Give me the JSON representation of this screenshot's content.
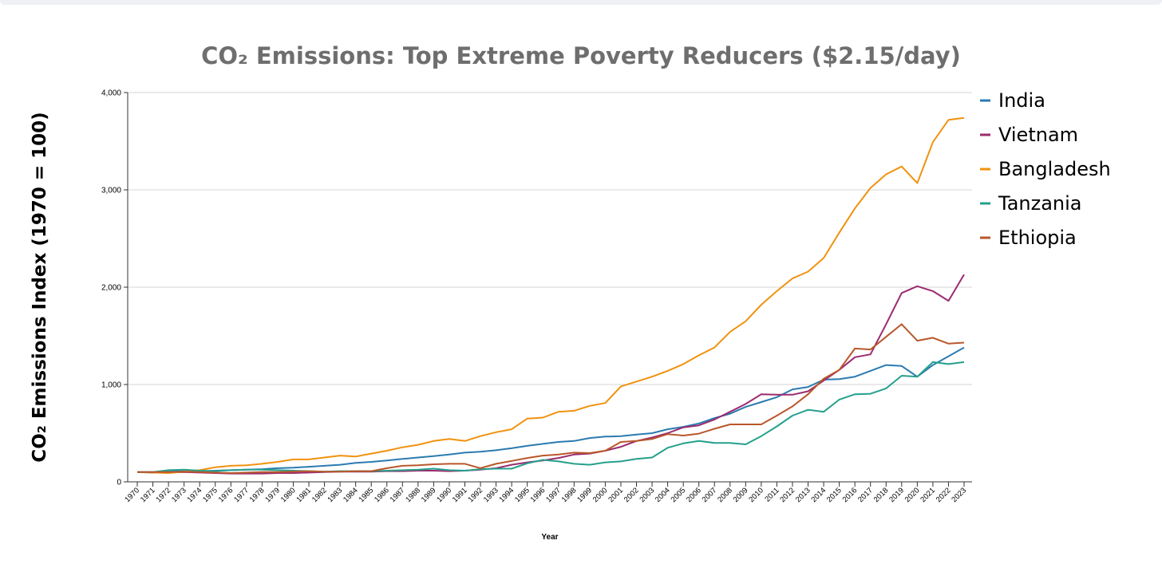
{
  "chart_data": {
    "type": "line",
    "title": "CO₂ Emissions: Top Extreme Poverty Reducers ($2.15/day)",
    "xlabel": "Year",
    "ylabel": "CO₂ Emissions Index (1970 = 100)",
    "ylim": [
      0,
      4000
    ],
    "yticks": [
      0,
      1000,
      2000,
      3000,
      4000
    ],
    "ytick_labels": [
      "0",
      "1,000",
      "2,000",
      "3,000",
      "4,000"
    ],
    "grid": "horizontal",
    "legend_position": "right",
    "x": [
      1970,
      1971,
      1972,
      1973,
      1974,
      1975,
      1976,
      1977,
      1978,
      1979,
      1980,
      1981,
      1982,
      1983,
      1984,
      1985,
      1986,
      1987,
      1988,
      1989,
      1990,
      1991,
      1992,
      1993,
      1994,
      1995,
      1996,
      1997,
      1998,
      1999,
      2000,
      2001,
      2002,
      2003,
      2004,
      2005,
      2006,
      2007,
      2008,
      2009,
      2010,
      2011,
      2012,
      2013,
      2014,
      2015,
      2016,
      2017,
      2018,
      2019,
      2020,
      2021,
      2022,
      2023
    ],
    "series": [
      {
        "name": "India",
        "color": "#2b7bb0",
        "values": [
          100,
          100,
          105,
          108,
          110,
          115,
          120,
          125,
          130,
          140,
          145,
          155,
          165,
          175,
          195,
          205,
          220,
          235,
          250,
          265,
          280,
          300,
          310,
          325,
          345,
          370,
          390,
          410,
          420,
          450,
          465,
          470,
          485,
          500,
          540,
          565,
          600,
          655,
          700,
          770,
          820,
          870,
          950,
          975,
          1050,
          1055,
          1080,
          1140,
          1200,
          1190,
          1080,
          1200,
          1290,
          1380
        ]
      },
      {
        "name": "Vietnam",
        "color": "#9b2b6f",
        "values": [
          100,
          95,
          95,
          100,
          95,
          90,
          85,
          85,
          85,
          90,
          90,
          95,
          100,
          105,
          105,
          105,
          110,
          110,
          115,
          115,
          110,
          115,
          125,
          140,
          175,
          200,
          220,
          245,
          280,
          290,
          320,
          360,
          420,
          455,
          500,
          560,
          580,
          640,
          720,
          800,
          900,
          895,
          895,
          930,
          1040,
          1150,
          1280,
          1310,
          1620,
          1940,
          2010,
          1960,
          1860,
          2130
        ]
      },
      {
        "name": "Bangladesh",
        "color": "#f0920f",
        "values": [
          100,
          95,
          90,
          105,
          120,
          150,
          165,
          170,
          185,
          205,
          230,
          230,
          250,
          270,
          260,
          290,
          320,
          355,
          380,
          420,
          440,
          420,
          470,
          510,
          540,
          650,
          660,
          720,
          730,
          780,
          810,
          980,
          1030,
          1080,
          1140,
          1210,
          1300,
          1380,
          1540,
          1650,
          1820,
          1960,
          2090,
          2160,
          2300,
          2560,
          2810,
          3020,
          3160,
          3240,
          3070,
          3490,
          3720,
          3740
        ]
      },
      {
        "name": "Tanzania",
        "color": "#25a08c",
        "values": [
          100,
          100,
          120,
          125,
          115,
          110,
          120,
          125,
          125,
          120,
          115,
          110,
          105,
          110,
          110,
          110,
          115,
          120,
          125,
          135,
          120,
          115,
          130,
          135,
          135,
          190,
          225,
          210,
          185,
          175,
          200,
          210,
          235,
          250,
          350,
          395,
          420,
          400,
          400,
          385,
          470,
          570,
          680,
          740,
          720,
          845,
          900,
          905,
          960,
          1090,
          1080,
          1230,
          1210,
          1230
        ]
      },
      {
        "name": "Ethiopia",
        "color": "#b9572b",
        "values": [
          100,
          100,
          100,
          105,
          100,
          95,
          90,
          95,
          100,
          100,
          105,
          110,
          105,
          105,
          110,
          110,
          140,
          165,
          170,
          180,
          185,
          185,
          140,
          185,
          215,
          245,
          270,
          280,
          300,
          295,
          320,
          410,
          420,
          440,
          490,
          475,
          495,
          545,
          590,
          590,
          590,
          680,
          775,
          900,
          1060,
          1150,
          1370,
          1360,
          1490,
          1620,
          1450,
          1480,
          1420,
          1430
        ]
      }
    ]
  }
}
